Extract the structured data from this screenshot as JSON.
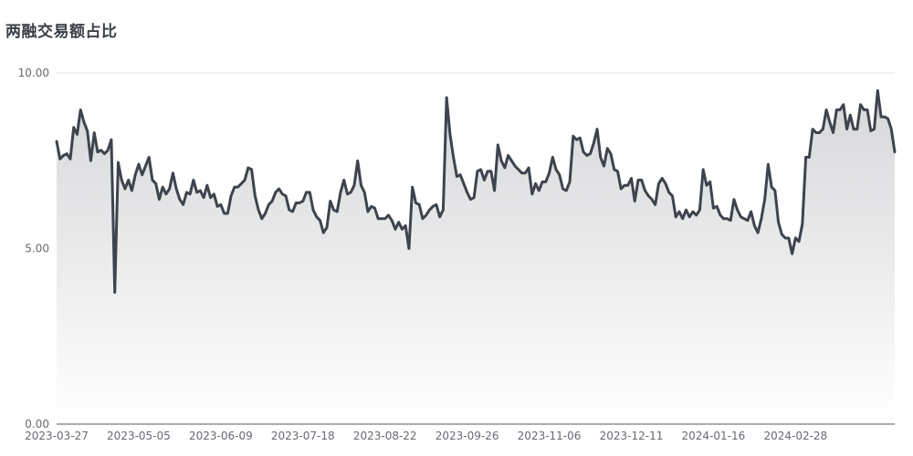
{
  "chart_data": {
    "type": "area",
    "title": "两融交易额占比",
    "xlabel": "",
    "ylabel": "",
    "ylim": [
      0,
      10
    ],
    "yticks": [
      0,
      5,
      10
    ],
    "ytick_labels": [
      "0.00",
      "5.00",
      "10.00"
    ],
    "x_tick_labels": [
      "2023-03-27",
      "2023-05-05",
      "2023-06-09",
      "2023-07-18",
      "2023-08-22",
      "2023-09-26",
      "2023-11-06",
      "2023-12-11",
      "2024-01-16",
      "2024-02-28"
    ],
    "x_tick_indices": [
      0,
      24,
      48,
      72,
      96,
      120,
      144,
      168,
      192,
      216
    ],
    "grid": true,
    "colors": {
      "line": "#3d444d",
      "area_top": "#d6d7d9",
      "area_bottom": "#ffffff",
      "grid": "#e6e6e6",
      "axis": "#555a60"
    },
    "series": [
      {
        "values": [
          8.05,
          7.55,
          7.65,
          7.7,
          7.55,
          8.45,
          8.25,
          8.95,
          8.6,
          8.35,
          7.5,
          8.3,
          7.75,
          7.8,
          7.7,
          7.8,
          8.1,
          3.75,
          7.45,
          6.95,
          6.7,
          6.95,
          6.65,
          7.1,
          7.4,
          7.1,
          7.35,
          7.6,
          6.95,
          6.85,
          6.4,
          6.75,
          6.55,
          6.7,
          7.15,
          6.7,
          6.4,
          6.25,
          6.6,
          6.55,
          6.95,
          6.6,
          6.65,
          6.45,
          6.8,
          6.45,
          6.55,
          6.2,
          6.25,
          6.0,
          6.0,
          6.5,
          6.75,
          6.75,
          6.85,
          6.95,
          7.3,
          7.25,
          6.5,
          6.1,
          5.85,
          6.0,
          6.25,
          6.35,
          6.6,
          6.7,
          6.55,
          6.5,
          6.1,
          6.05,
          6.3,
          6.3,
          6.35,
          6.6,
          6.6,
          6.1,
          5.9,
          5.8,
          5.45,
          5.6,
          6.35,
          6.1,
          6.05,
          6.6,
          6.95,
          6.55,
          6.6,
          6.8,
          7.5,
          6.8,
          6.6,
          6.05,
          6.2,
          6.15,
          5.85,
          5.85,
          5.85,
          5.95,
          5.8,
          5.55,
          5.75,
          5.55,
          5.65,
          5.0,
          6.75,
          6.3,
          6.25,
          5.85,
          5.95,
          6.1,
          6.2,
          6.25,
          5.9,
          6.1,
          9.3,
          8.25,
          7.6,
          7.05,
          7.1,
          6.85,
          6.6,
          6.4,
          6.45,
          7.2,
          7.25,
          6.95,
          7.2,
          7.2,
          6.65,
          7.95,
          7.5,
          7.3,
          7.65,
          7.5,
          7.35,
          7.25,
          7.15,
          7.15,
          7.3,
          6.55,
          6.85,
          6.65,
          6.9,
          6.9,
          7.15,
          7.6,
          7.25,
          7.1,
          6.7,
          6.65,
          6.9,
          8.2,
          8.1,
          8.15,
          7.75,
          7.65,
          7.7,
          8.0,
          8.4,
          7.6,
          7.35,
          7.85,
          7.7,
          7.25,
          7.2,
          6.7,
          6.8,
          6.8,
          7.0,
          6.35,
          6.95,
          6.95,
          6.65,
          6.5,
          6.4,
          6.25,
          6.85,
          7.0,
          6.85,
          6.6,
          6.5,
          5.9,
          6.05,
          5.85,
          6.1,
          5.9,
          6.05,
          5.95,
          6.1,
          7.25,
          6.8,
          6.9,
          6.15,
          6.2,
          5.95,
          5.85,
          5.85,
          5.8,
          6.4,
          6.1,
          5.9,
          5.85,
          5.8,
          6.05,
          5.65,
          5.45,
          5.85,
          6.4,
          7.4,
          6.75,
          6.65,
          5.75,
          5.4,
          5.3,
          5.3,
          4.85,
          5.3,
          5.2,
          5.7,
          7.6,
          7.6,
          8.4,
          8.3,
          8.3,
          8.4,
          8.95,
          8.6,
          8.3,
          8.95,
          8.95,
          9.1,
          8.4,
          8.8,
          8.4,
          8.4,
          9.1,
          8.95,
          8.95,
          8.35,
          8.4,
          9.5,
          8.75,
          8.75,
          8.7,
          8.4,
          7.75
        ]
      }
    ]
  }
}
